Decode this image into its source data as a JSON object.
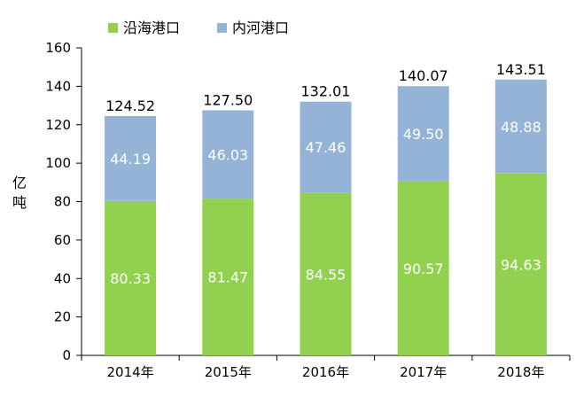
{
  "chart_data": {
    "type": "bar",
    "stacked": true,
    "categories": [
      "2014年",
      "2015年",
      "2016年",
      "2017年",
      "2018年"
    ],
    "series": [
      {
        "name": "沿海港口",
        "color": "#92d050",
        "values": [
          80.33,
          81.47,
          84.55,
          90.57,
          94.63
        ]
      },
      {
        "name": "内河港口",
        "color": "#95b3d7",
        "values": [
          44.19,
          46.03,
          47.46,
          49.5,
          48.88
        ]
      }
    ],
    "totals": [
      124.52,
      127.5,
      132.01,
      140.07,
      143.51
    ],
    "value_labels": [
      [
        "80.33",
        "81.47",
        "84.55",
        "90.57",
        "94.63"
      ],
      [
        "44.19",
        "46.03",
        "47.46",
        "49.50",
        "48.88"
      ]
    ],
    "total_labels": [
      "124.52",
      "127.50",
      "132.01",
      "140.07",
      "143.51"
    ],
    "ylabel": "亿吨",
    "ylim": [
      0,
      160
    ],
    "yticks": [
      0,
      20,
      40,
      60,
      80,
      100,
      120,
      140,
      160
    ],
    "grid": false,
    "legend_position": "top-left"
  }
}
